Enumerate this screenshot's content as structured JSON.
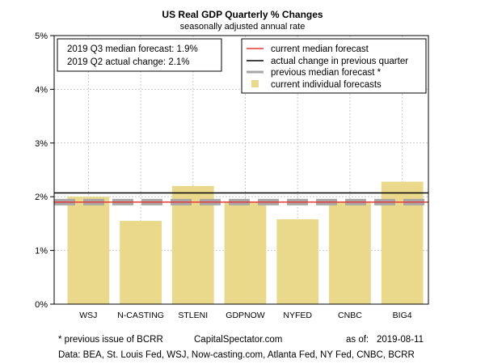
{
  "colors": {
    "bar": "#ead98b",
    "current_median": "#e53935",
    "actual_change": "#000000",
    "previous_median": "#a7a7a7",
    "grid": "#c8c8c8"
  },
  "chart_data": {
    "type": "bar",
    "title": "US Real GDP Quarterly % Changes",
    "subtitle": "seasonally adjusted annual rate",
    "categories": [
      "WSJ",
      "N-CASTING",
      "STLENI",
      "GDPNOW",
      "NYFED",
      "CNBC",
      "BIG4"
    ],
    "series": [
      {
        "name": "current individual forecasts",
        "values": [
          2.0,
          1.55,
          2.2,
          1.9,
          1.58,
          1.9,
          2.28
        ]
      }
    ],
    "ylim": [
      0,
      5
    ],
    "yticks": [
      0,
      1,
      2,
      3,
      4,
      5
    ],
    "ytick_labels": [
      "0%",
      "1%",
      "2%",
      "3%",
      "4%",
      "5%"
    ],
    "grid": true,
    "lines": {
      "current_median": {
        "label": "current median forecast",
        "value": 1.9
      },
      "actual_change": {
        "label": "actual change in previous quarter",
        "value": 2.07
      },
      "previous_median": {
        "label": "previous median forecast *",
        "value": 1.9
      }
    },
    "legend_position": "top-right",
    "info_box": {
      "line1": "2019 Q3 median forecast: 1.9%",
      "line2": "2019 Q2 actual change: 2.1%"
    },
    "footer": {
      "note": "* previous issue of BCRR",
      "site": "CapitalSpectator.com",
      "asof_label": "as of:",
      "asof_date": "2019-08-11",
      "source": "Data: BEA, St. Louis Fed, WSJ, Now-casting.com, Atlanta Fed, NY Fed, CNBC, BCRR"
    }
  }
}
